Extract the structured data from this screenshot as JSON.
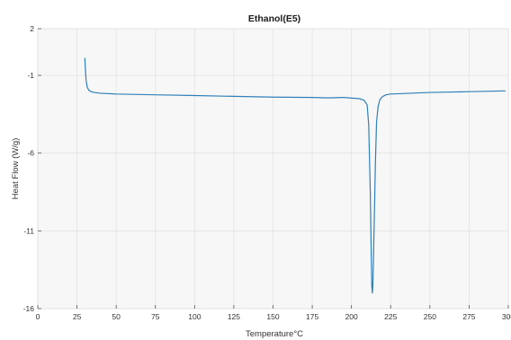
{
  "chart_data": {
    "type": "line",
    "title": "Ethanol(E5)",
    "xlabel": "Temperature°C",
    "ylabel": "Heat Flow (W/g)",
    "xlim": [
      0,
      300
    ],
    "ylim": [
      -16,
      2
    ],
    "x_ticks": [
      "0",
      "25",
      "50",
      "75",
      "100",
      "125",
      "150",
      "175",
      "200",
      "225",
      "250",
      "275",
      "300"
    ],
    "y_ticks": [
      "2",
      "-1",
      "-6",
      "-11",
      "-16"
    ],
    "grid": true,
    "series": [
      {
        "color": "#2f7fb8",
        "x": [
          30,
          30.3,
          30.8,
          31.5,
          32.5,
          34,
          36,
          40,
          50,
          75,
          100,
          125,
          150,
          175,
          185,
          195,
          205,
          208,
          210,
          211,
          212,
          212.6,
          213,
          213.3,
          213.6,
          214,
          214.6,
          215.3,
          216,
          217,
          218,
          219,
          220,
          222,
          225,
          250,
          275,
          298
        ],
        "y": [
          0.1,
          -0.5,
          -1.3,
          -1.75,
          -1.95,
          -2.05,
          -2.1,
          -2.15,
          -2.2,
          -2.25,
          -2.3,
          -2.35,
          -2.4,
          -2.42,
          -2.45,
          -2.42,
          -2.5,
          -2.6,
          -2.9,
          -4.2,
          -8.5,
          -12.5,
          -14.6,
          -15.0,
          -14.6,
          -13.0,
          -10.0,
          -6.5,
          -4.0,
          -3.0,
          -2.6,
          -2.45,
          -2.35,
          -2.25,
          -2.2,
          -2.1,
          -2.05,
          -2.0
        ]
      }
    ]
  }
}
